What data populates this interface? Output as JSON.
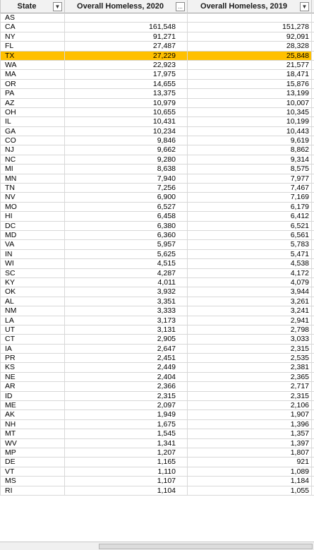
{
  "headers": {
    "state": "State",
    "h2020": "Overall Homeless, 2020",
    "h2019": "Overall Homeless, 2019"
  },
  "filter_icons": {
    "state": "▼",
    "h2020": "...",
    "h2019": "▼"
  },
  "selected_state": "TX",
  "selected_color": "#ffc000",
  "rows": [
    {
      "state": "AS",
      "y2020": "",
      "y2019": ""
    },
    {
      "state": "CA",
      "y2020": "161,548",
      "y2019": "151,278"
    },
    {
      "state": "NY",
      "y2020": "91,271",
      "y2019": "92,091"
    },
    {
      "state": "FL",
      "y2020": "27,487",
      "y2019": "28,328"
    },
    {
      "state": "TX",
      "y2020": "27,229",
      "y2019": "25,848"
    },
    {
      "state": "WA",
      "y2020": "22,923",
      "y2019": "21,577"
    },
    {
      "state": "MA",
      "y2020": "17,975",
      "y2019": "18,471"
    },
    {
      "state": "OR",
      "y2020": "14,655",
      "y2019": "15,876"
    },
    {
      "state": "PA",
      "y2020": "13,375",
      "y2019": "13,199"
    },
    {
      "state": "AZ",
      "y2020": "10,979",
      "y2019": "10,007"
    },
    {
      "state": "OH",
      "y2020": "10,655",
      "y2019": "10,345"
    },
    {
      "state": "IL",
      "y2020": "10,431",
      "y2019": "10,199"
    },
    {
      "state": "GA",
      "y2020": "10,234",
      "y2019": "10,443"
    },
    {
      "state": "CO",
      "y2020": "9,846",
      "y2019": "9,619"
    },
    {
      "state": "NJ",
      "y2020": "9,662",
      "y2019": "8,862"
    },
    {
      "state": "NC",
      "y2020": "9,280",
      "y2019": "9,314"
    },
    {
      "state": "MI",
      "y2020": "8,638",
      "y2019": "8,575"
    },
    {
      "state": "MN",
      "y2020": "7,940",
      "y2019": "7,977"
    },
    {
      "state": "TN",
      "y2020": "7,256",
      "y2019": "7,467"
    },
    {
      "state": "NV",
      "y2020": "6,900",
      "y2019": "7,169"
    },
    {
      "state": "MO",
      "y2020": "6,527",
      "y2019": "6,179"
    },
    {
      "state": "HI",
      "y2020": "6,458",
      "y2019": "6,412"
    },
    {
      "state": "DC",
      "y2020": "6,380",
      "y2019": "6,521"
    },
    {
      "state": "MD",
      "y2020": "6,360",
      "y2019": "6,561"
    },
    {
      "state": "VA",
      "y2020": "5,957",
      "y2019": "5,783"
    },
    {
      "state": "IN",
      "y2020": "5,625",
      "y2019": "5,471"
    },
    {
      "state": "WI",
      "y2020": "4,515",
      "y2019": "4,538"
    },
    {
      "state": "SC",
      "y2020": "4,287",
      "y2019": "4,172"
    },
    {
      "state": "KY",
      "y2020": "4,011",
      "y2019": "4,079"
    },
    {
      "state": "OK",
      "y2020": "3,932",
      "y2019": "3,944"
    },
    {
      "state": "AL",
      "y2020": "3,351",
      "y2019": "3,261"
    },
    {
      "state": "NM",
      "y2020": "3,333",
      "y2019": "3,241"
    },
    {
      "state": "LA",
      "y2020": "3,173",
      "y2019": "2,941"
    },
    {
      "state": "UT",
      "y2020": "3,131",
      "y2019": "2,798"
    },
    {
      "state": "CT",
      "y2020": "2,905",
      "y2019": "3,033"
    },
    {
      "state": "IA",
      "y2020": "2,647",
      "y2019": "2,315"
    },
    {
      "state": "PR",
      "y2020": "2,451",
      "y2019": "2,535"
    },
    {
      "state": "KS",
      "y2020": "2,449",
      "y2019": "2,381"
    },
    {
      "state": "NE",
      "y2020": "2,404",
      "y2019": "2,365"
    },
    {
      "state": "AR",
      "y2020": "2,366",
      "y2019": "2,717"
    },
    {
      "state": "ID",
      "y2020": "2,315",
      "y2019": "2,315"
    },
    {
      "state": "ME",
      "y2020": "2,097",
      "y2019": "2,106"
    },
    {
      "state": "AK",
      "y2020": "1,949",
      "y2019": "1,907"
    },
    {
      "state": "NH",
      "y2020": "1,675",
      "y2019": "1,396"
    },
    {
      "state": "MT",
      "y2020": "1,545",
      "y2019": "1,357"
    },
    {
      "state": "WV",
      "y2020": "1,341",
      "y2019": "1,397"
    },
    {
      "state": "MP",
      "y2020": "1,207",
      "y2019": "1,807"
    },
    {
      "state": "DE",
      "y2020": "1,165",
      "y2019": "921"
    },
    {
      "state": "VT",
      "y2020": "1,110",
      "y2019": "1,089"
    },
    {
      "state": "MS",
      "y2020": "1,107",
      "y2019": "1,184"
    },
    {
      "state": "RI",
      "y2020": "1,104",
      "y2019": "1,055"
    }
  ]
}
